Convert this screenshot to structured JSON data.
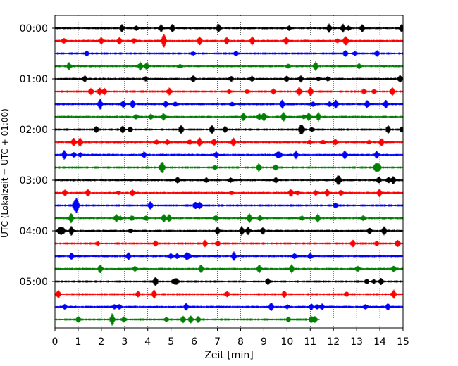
{
  "chart_data": {
    "type": "line",
    "title": "",
    "xlabel": "Zeit  [min]",
    "ylabel": "UTC (Lokalzeit = UTC + 01:00)",
    "xlim": [
      0,
      15
    ],
    "x_ticks": [
      "0",
      "1",
      "2",
      "3",
      "4",
      "5",
      "6",
      "7",
      "8",
      "9",
      "10",
      "11",
      "12",
      "13",
      "14",
      "15"
    ],
    "y_tick_labels": [
      "00:00",
      "01:00",
      "02:00",
      "03:00",
      "04:00",
      "05:00"
    ],
    "grid": "vertical dotted at each minute",
    "line_interval_min": 15,
    "trace_colors": [
      "#000000",
      "#ff0000",
      "#0000ff",
      "#008000"
    ],
    "traces": [
      {
        "start": "00:00",
        "color": "#000000",
        "end_min": 15
      },
      {
        "start": "00:15",
        "color": "#ff0000",
        "end_min": 15
      },
      {
        "start": "00:30",
        "color": "#0000ff",
        "end_min": 15
      },
      {
        "start": "00:45",
        "color": "#008000",
        "end_min": 15
      },
      {
        "start": "01:00",
        "color": "#000000",
        "end_min": 15
      },
      {
        "start": "01:15",
        "color": "#ff0000",
        "end_min": 15
      },
      {
        "start": "01:30",
        "color": "#0000ff",
        "end_min": 15
      },
      {
        "start": "01:45",
        "color": "#008000",
        "end_min": 15
      },
      {
        "start": "02:00",
        "color": "#000000",
        "end_min": 15
      },
      {
        "start": "02:15",
        "color": "#ff0000",
        "end_min": 15
      },
      {
        "start": "02:30",
        "color": "#0000ff",
        "end_min": 15
      },
      {
        "start": "02:45",
        "color": "#008000",
        "end_min": 15
      },
      {
        "start": "03:00",
        "color": "#000000",
        "end_min": 15
      },
      {
        "start": "03:15",
        "color": "#ff0000",
        "end_min": 15
      },
      {
        "start": "03:30",
        "color": "#0000ff",
        "end_min": 15
      },
      {
        "start": "03:45",
        "color": "#008000",
        "end_min": 15
      },
      {
        "start": "04:00",
        "color": "#000000",
        "end_min": 15
      },
      {
        "start": "04:15",
        "color": "#ff0000",
        "end_min": 15
      },
      {
        "start": "04:30",
        "color": "#0000ff",
        "end_min": 15
      },
      {
        "start": "04:45",
        "color": "#008000",
        "end_min": 15
      },
      {
        "start": "05:00",
        "color": "#000000",
        "end_min": 15
      },
      {
        "start": "05:15",
        "color": "#ff0000",
        "end_min": 15
      },
      {
        "start": "05:30",
        "color": "#0000ff",
        "end_min": 15
      },
      {
        "start": "05:45",
        "color": "#008000",
        "end_min": 11.4
      }
    ]
  }
}
